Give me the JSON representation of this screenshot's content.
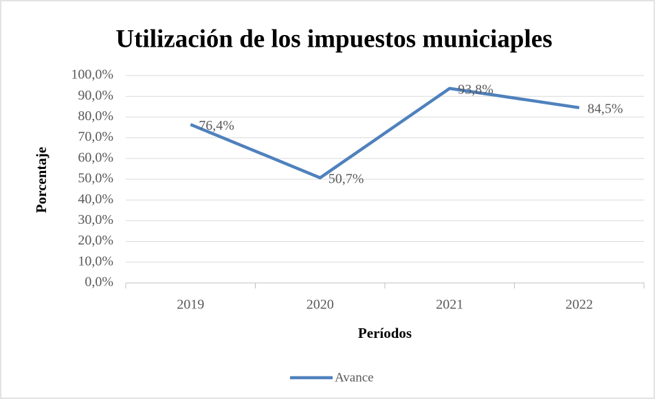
{
  "chart_data": {
    "type": "line",
    "title": "Utilización de los impuestos municiaples",
    "x_label": "Períodos",
    "y_label": "Porcentaje",
    "categories": [
      "2019",
      "2020",
      "2021",
      "2022"
    ],
    "series": [
      {
        "name": "Avance",
        "color": "#4f81bd",
        "values": [
          76.4,
          50.7,
          93.8,
          84.5
        ],
        "value_labels": [
          "76,4%",
          "50,7%",
          "93,8%",
          "84,5%"
        ]
      }
    ],
    "ylim": [
      0,
      100
    ],
    "yticks": [
      {
        "value": 0,
        "label": "0,0%"
      },
      {
        "value": 10,
        "label": "10,0%"
      },
      {
        "value": 20,
        "label": "20,0%"
      },
      {
        "value": 30,
        "label": "30,0%"
      },
      {
        "value": 40,
        "label": "40,0%"
      },
      {
        "value": 50,
        "label": "50,0%"
      },
      {
        "value": 60,
        "label": "60,0%"
      },
      {
        "value": 70,
        "label": "70,0%"
      },
      {
        "value": 80,
        "label": "80,0%"
      },
      {
        "value": 90,
        "label": "90,0%"
      },
      {
        "value": 100,
        "label": "100,0%"
      }
    ],
    "grid": true,
    "legend": "bottom"
  }
}
